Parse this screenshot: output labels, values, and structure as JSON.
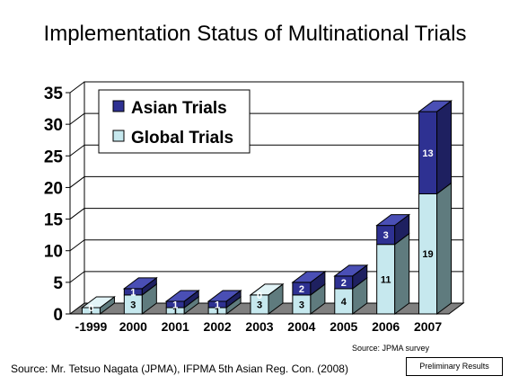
{
  "chart_data": {
    "type": "bar",
    "stacked": true,
    "style": "3d",
    "title": "Implementation Status of Multinational Trials",
    "categories": [
      "-1999",
      "2000",
      "2001",
      "2002",
      "2003",
      "2004",
      "2005",
      "2006",
      "2007"
    ],
    "series": [
      {
        "name": "Global Trials",
        "values": [
          1,
          3,
          1,
          1,
          3,
          3,
          4,
          11,
          19
        ],
        "color": "#c6e8ee"
      },
      {
        "name": "Asian Trials",
        "values": [
          0,
          1,
          1,
          1,
          0,
          2,
          2,
          3,
          13
        ],
        "color": "#2e3192"
      }
    ],
    "ylim": [
      0,
      35
    ],
    "yticks": [
      "0",
      "5",
      "10",
      "15",
      "20",
      "25",
      "30",
      "35"
    ],
    "grid": true,
    "legend_position": "top-left"
  },
  "source_note": "Source: JPMA survey",
  "footer_source": "Source: Mr. Tetsuo Nagata (JPMA), IFPMA 5th Asian Reg. Con. (2008)",
  "badge": "Preliminary Results"
}
